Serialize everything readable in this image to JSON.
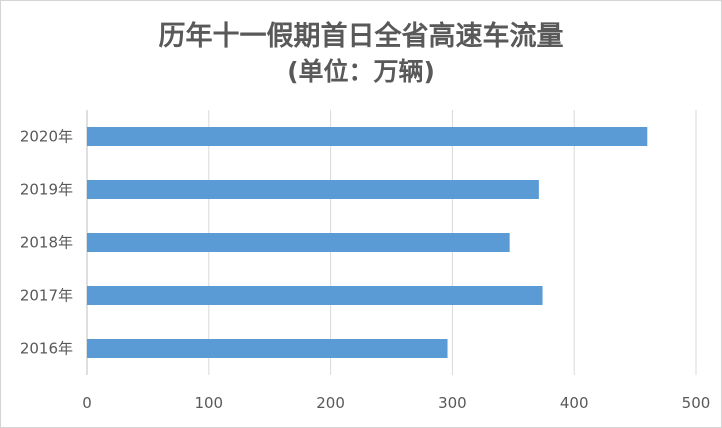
{
  "chart_data": {
    "type": "bar",
    "orientation": "horizontal",
    "title": "历年十一假期首日全省高速车流量",
    "subtitle": "(单位：万辆)",
    "categories": [
      "2020年",
      "2019年",
      "2018年",
      "2017年",
      "2016年"
    ],
    "values": [
      460,
      371,
      347,
      374,
      296
    ],
    "xlim": [
      0,
      500
    ],
    "xticks": [
      "0",
      "100",
      "200",
      "300",
      "400",
      "500"
    ],
    "grid": true,
    "bar_color": "#5b9bd5"
  }
}
